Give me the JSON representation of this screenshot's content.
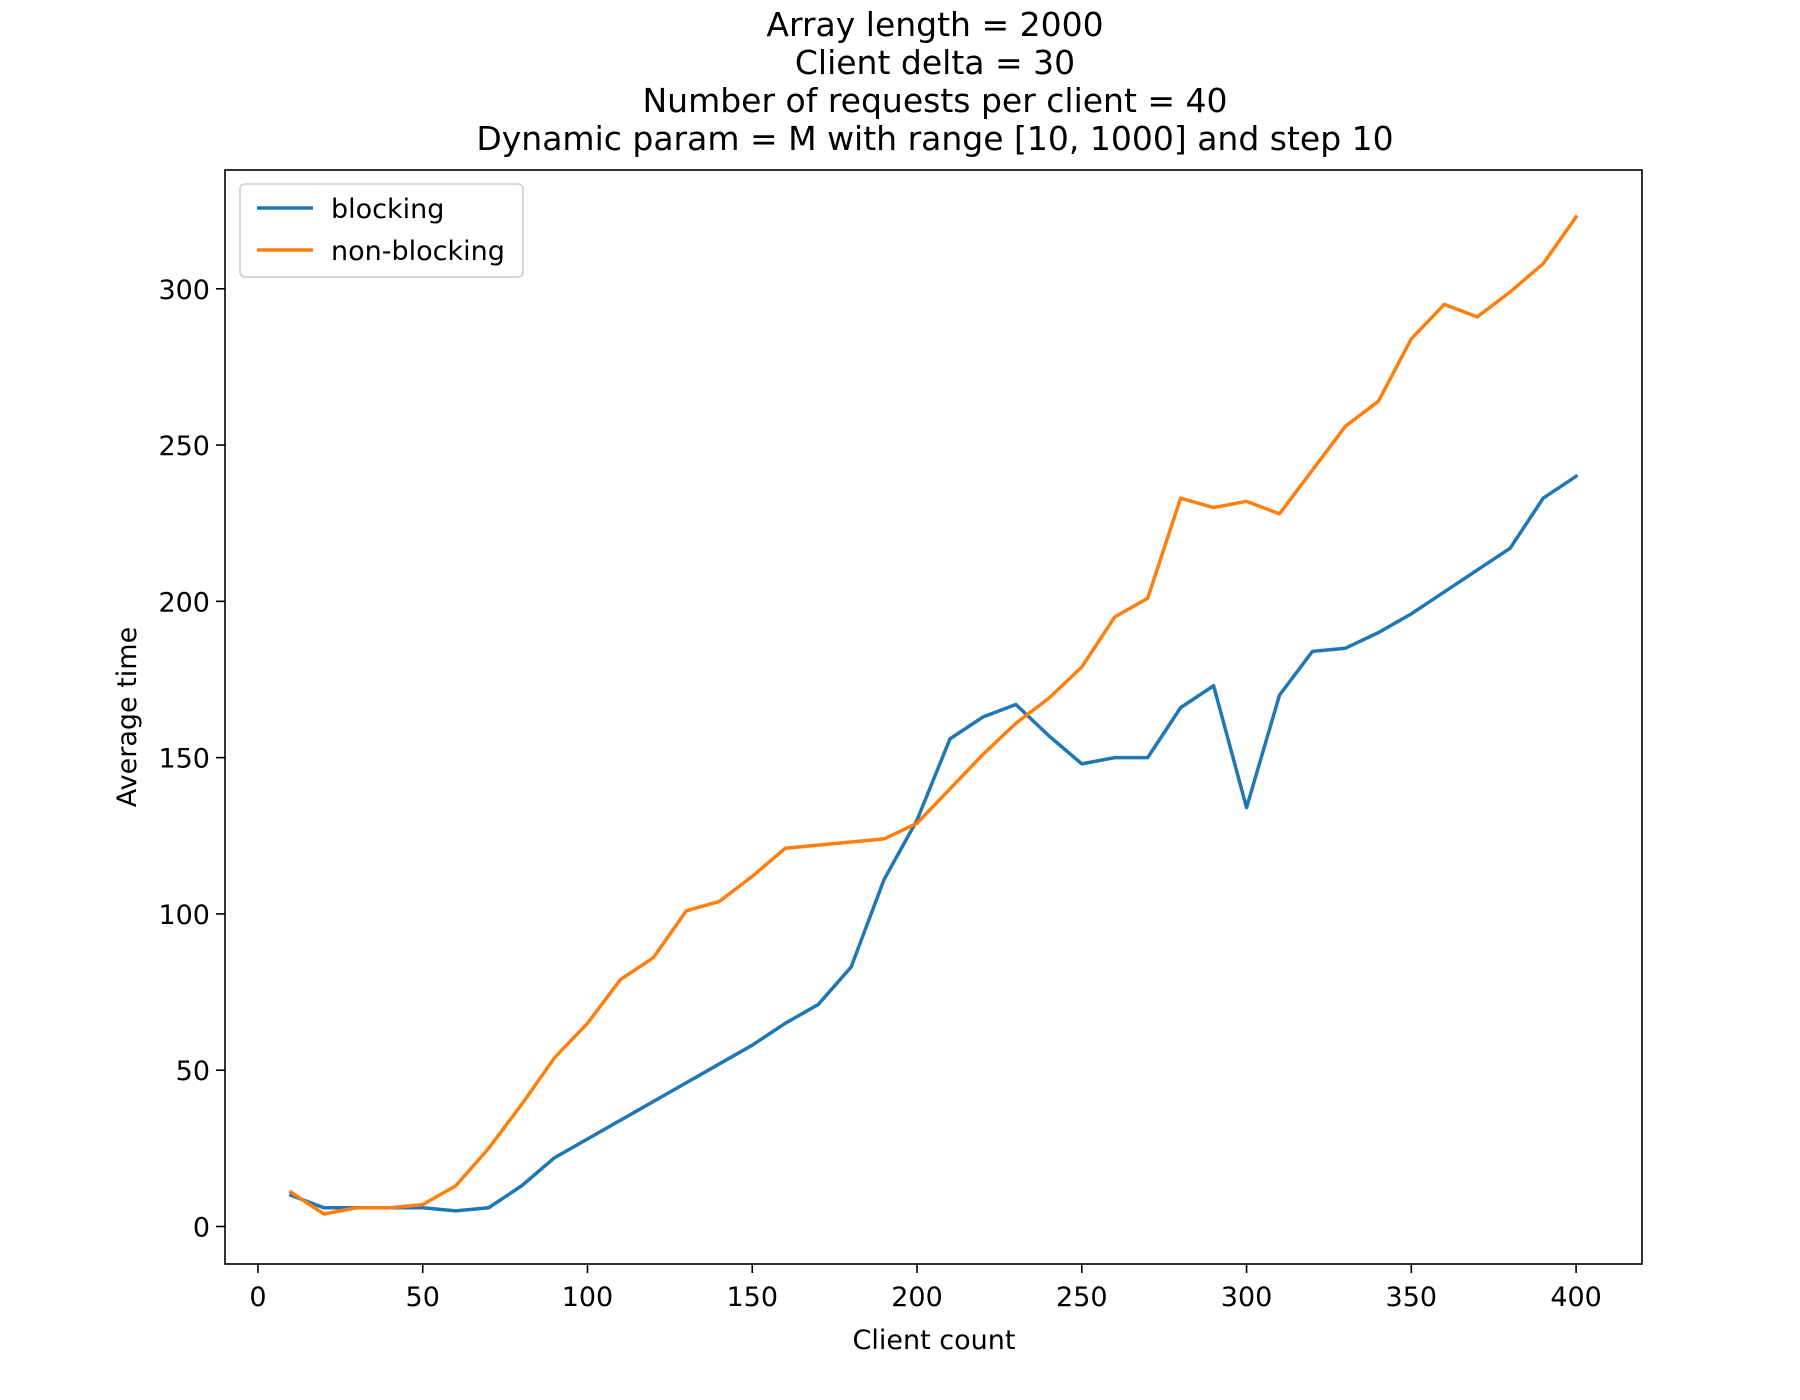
{
  "chart_data": {
    "type": "line",
    "title_lines": [
      "Array length = 2000",
      "Client delta = 30",
      "Number of requests per client = 40",
      "Dynamic param = M with range [10, 1000] and step 10"
    ],
    "xlabel": "Client count",
    "ylabel": "Average time",
    "xlim": [
      -10,
      420
    ],
    "ylim": [
      -12,
      338
    ],
    "xticks": [
      0,
      50,
      100,
      150,
      200,
      250,
      300,
      350,
      400
    ],
    "yticks": [
      0,
      50,
      100,
      150,
      200,
      250,
      300
    ],
    "xtick_labels": [
      "0",
      "50",
      "100",
      "150",
      "200",
      "250",
      "300",
      "350",
      "400"
    ],
    "ytick_labels": [
      "0",
      "50",
      "100",
      "150",
      "200",
      "250",
      "300"
    ],
    "grid": false,
    "legend_position": "top-left",
    "x": [
      10,
      20,
      30,
      40,
      50,
      60,
      70,
      80,
      90,
      100,
      110,
      120,
      130,
      140,
      150,
      160,
      170,
      180,
      190,
      200,
      210,
      220,
      230,
      240,
      250,
      260,
      270,
      280,
      290,
      300,
      310,
      320,
      330,
      340,
      350,
      360,
      370,
      380,
      390,
      400
    ],
    "series": [
      {
        "name": "blocking",
        "color": "#1f77b4",
        "values": [
          10,
          6,
          6,
          6,
          6,
          5,
          6,
          13,
          22,
          28,
          34,
          40,
          46,
          52,
          58,
          65,
          71,
          83,
          111,
          130,
          156,
          163,
          167,
          157,
          148,
          150,
          150,
          166,
          173,
          134,
          170,
          184,
          185,
          190,
          196,
          203,
          210,
          217,
          233,
          240
        ]
      },
      {
        "name": "non-blocking",
        "color": "#ff7f0e",
        "values": [
          11,
          4,
          6,
          6,
          7,
          13,
          25,
          39,
          54,
          65,
          79,
          86,
          101,
          104,
          112,
          121,
          122,
          123,
          124,
          129,
          140,
          151,
          161,
          169,
          179,
          195,
          201,
          233,
          230,
          232,
          228,
          242,
          256,
          264,
          284,
          295,
          291,
          299,
          308,
          323
        ]
      }
    ]
  }
}
